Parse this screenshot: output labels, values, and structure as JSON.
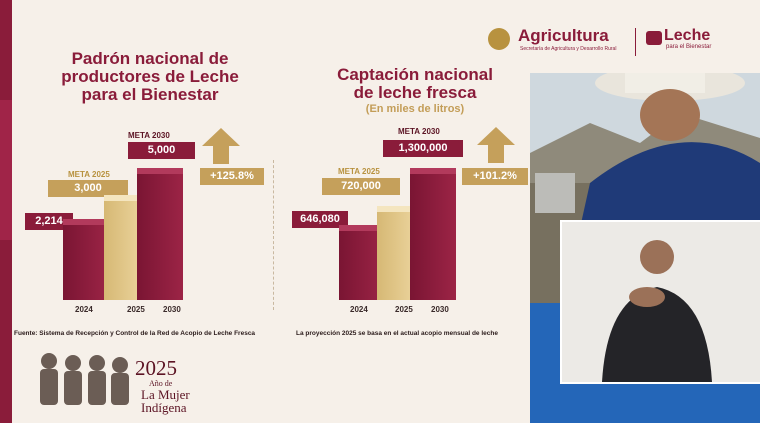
{
  "header": {
    "agricultura": "Agricultura",
    "agricultura_sub": "Secretaría de Agricultura y Desarrollo Rural",
    "leche": "Leche",
    "leche_sub": "para el Bienestar"
  },
  "left_chart": {
    "title_line1": "Padrón nacional de",
    "title_line2": "productores de Leche",
    "title_line3": "para el Bienestar",
    "meta2030_label": "META 2030",
    "meta2030_value": "5,000",
    "meta2025_label": "META 2025",
    "meta2025_value": "3,000",
    "value2024": "2,214",
    "pct": "+125.8%",
    "years": [
      "2024",
      "2025",
      "2030"
    ],
    "footnote": "Fuente: Sistema de Recepción y Control de la Red de Acopio de Leche Fresca"
  },
  "right_chart": {
    "title_line1": "Captación nacional",
    "title_line2": "de leche fresca",
    "subtitle": "(En miles de litros)",
    "meta2030_label": "META 2030",
    "meta2030_value": "1,300,000",
    "meta2025_label": "META 2025",
    "meta2025_value": "720,000",
    "value2024": "646,080",
    "pct": "+101.2%",
    "years": [
      "2024",
      "2025",
      "2030"
    ],
    "footnote": "La proyección 2025 se basa en el actual acopio mensual de leche"
  },
  "chart_data": [
    {
      "type": "bar",
      "title": "Padrón nacional de productores de Leche para el Bienestar",
      "categories": [
        "2024",
        "2025",
        "2030"
      ],
      "values": [
        2214,
        3000,
        5000
      ]
    },
    {
      "type": "bar",
      "title": "Captación nacional de leche fresca",
      "subtitle": "(En miles de litros)",
      "categories": [
        "2024",
        "2025",
        "2030"
      ],
      "values": [
        646080,
        720000,
        1300000
      ]
    }
  ],
  "footer": {
    "year": "2025",
    "line1": "Año de",
    "line2": "La Mujer",
    "line3": "Indígena"
  },
  "colors": {
    "primary": "#8a1c3a",
    "gold": "#c5a05b",
    "background": "#f6f0e9"
  }
}
